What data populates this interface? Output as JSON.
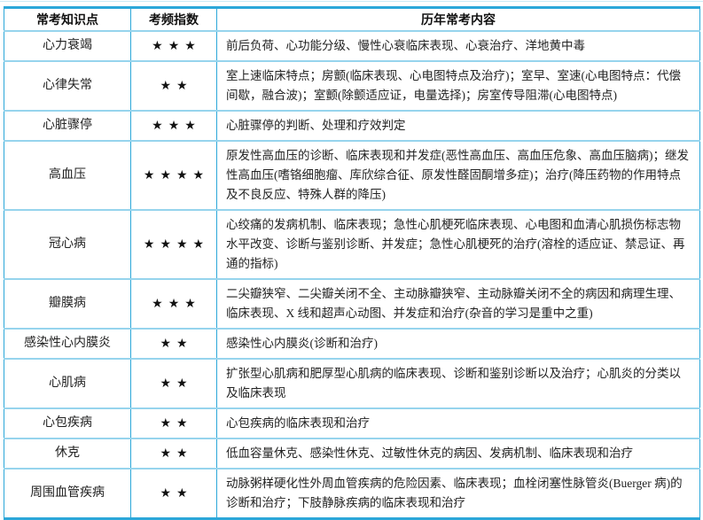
{
  "colors": {
    "border_strong": "#2ba7d9",
    "border_light": "#96d4ed",
    "border_faint": "#c9e9f6",
    "star_color": "#121212",
    "text": "#222222"
  },
  "table": {
    "headers": [
      "常考知识点",
      "考频指数",
      "历年常考内容"
    ],
    "rows": [
      {
        "topic": "心力衰竭",
        "stars": "★★★",
        "star_count": 3,
        "content": "前后负荷、心功能分级、慢性心衰临床表现、心衰治疗、洋地黄中毒"
      },
      {
        "topic": "心律失常",
        "stars": "★★",
        "star_count": 2,
        "content": "室上速临床特点；房颤(临床表现、心电图特点及治疗)；室早、室速(心电图特点：代偿间歇，融合波)；室颤(除颤适应证，电量选择)；房室传导阻滞(心电图特点)"
      },
      {
        "topic": "心脏骤停",
        "stars": "★★★",
        "star_count": 3,
        "content": "心脏骤停的判断、处理和疗效判定"
      },
      {
        "topic": "高血压",
        "stars": "★★★★",
        "star_count": 4,
        "content": "原发性高血压的诊断、临床表现和并发症(恶性高血压、高血压危象、高血压脑病)；继发性高血压(嗜铬细胞瘤、库欣综合征、原发性醛固酮增多症)；治疗(降压药物的作用特点及不良反应、特殊人群的降压)"
      },
      {
        "topic": "冠心病",
        "stars": "★★★★",
        "star_count": 4,
        "content": "心绞痛的发病机制、临床表现；急性心肌梗死临床表现、心电图和血清心肌损伤标志物水平改变、诊断与鉴别诊断、并发症；急性心肌梗死的治疗(溶栓的适应证、禁忌证、再通的指标)"
      },
      {
        "topic": "瓣膜病",
        "stars": "★★★",
        "star_count": 3,
        "content": "二尖瓣狭窄、二尖瓣关闭不全、主动脉瓣狭窄、主动脉瓣关闭不全的病因和病理生理、临床表现、X 线和超声心动图、并发症和治疗(杂音的学习是重中之重)"
      },
      {
        "topic": "感染性心内膜炎",
        "stars": "★★",
        "star_count": 2,
        "content": "感染性心内膜炎(诊断和治疗)"
      },
      {
        "topic": "心肌病",
        "stars": "★★",
        "star_count": 2,
        "content": "扩张型心肌病和肥厚型心肌病的临床表现、诊断和鉴别诊断以及治疗；心肌炎的分类以及临床表现"
      },
      {
        "topic": "心包疾病",
        "stars": "★★",
        "star_count": 2,
        "content": "心包疾病的临床表现和治疗"
      },
      {
        "topic": "休克",
        "stars": "★★",
        "star_count": 2,
        "content": "低血容量休克、感染性休克、过敏性休克的病因、发病机制、临床表现和治疗"
      },
      {
        "topic": "周围血管疾病",
        "stars": "★★",
        "star_count": 2,
        "content": "动脉粥样硬化性外周血管疾病的危险因素、临床表现；血栓闭塞性脉管炎(Buerger 病)的诊断和治疗；下肢静脉疾病的临床表现和治疗"
      }
    ]
  }
}
